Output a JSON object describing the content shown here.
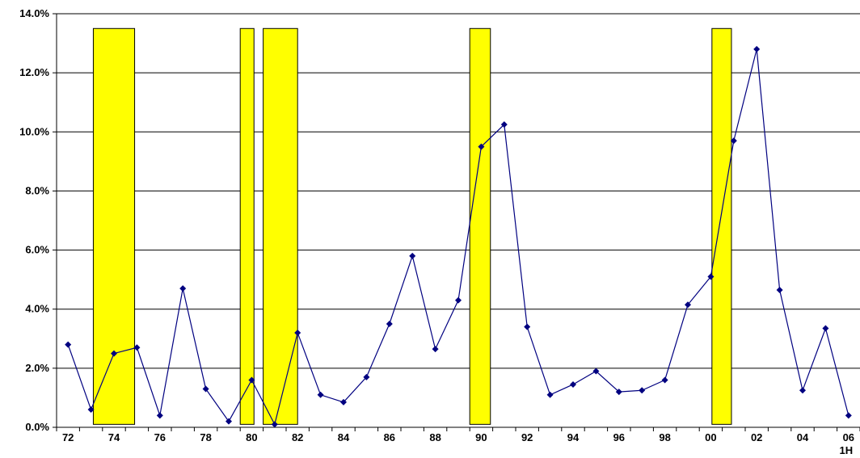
{
  "chart_data": {
    "type": "line",
    "title": "",
    "xlabel": "",
    "ylabel": "",
    "ylim": [
      0,
      14
    ],
    "y_ticks": [
      {
        "value": 0,
        "label": "0.0%"
      },
      {
        "value": 2,
        "label": "2.0%"
      },
      {
        "value": 4,
        "label": "4.0%"
      },
      {
        "value": 6,
        "label": "6.0%"
      },
      {
        "value": 8,
        "label": "8.0%"
      },
      {
        "value": 10,
        "label": "10.0%"
      },
      {
        "value": 12,
        "label": "12.0%"
      },
      {
        "value": 14,
        "label": "14.0%"
      }
    ],
    "categories": [
      "72",
      "73",
      "74",
      "75",
      "76",
      "77",
      "78",
      "79",
      "80",
      "81",
      "82",
      "83",
      "84",
      "85",
      "86",
      "87",
      "88",
      "89",
      "90",
      "91",
      "92",
      "93",
      "94",
      "95",
      "96",
      "97",
      "98",
      "99",
      "00",
      "01",
      "02",
      "03",
      "04",
      "05",
      "06 1H"
    ],
    "x_tick_labels": [
      {
        "index": 0,
        "label": "72"
      },
      {
        "index": 2,
        "label": "74"
      },
      {
        "index": 4,
        "label": "76"
      },
      {
        "index": 6,
        "label": "78"
      },
      {
        "index": 8,
        "label": "80"
      },
      {
        "index": 10,
        "label": "82"
      },
      {
        "index": 12,
        "label": "84"
      },
      {
        "index": 14,
        "label": "86"
      },
      {
        "index": 16,
        "label": "88"
      },
      {
        "index": 18,
        "label": "90"
      },
      {
        "index": 20,
        "label": "92"
      },
      {
        "index": 22,
        "label": "94"
      },
      {
        "index": 24,
        "label": "96"
      },
      {
        "index": 26,
        "label": "98"
      },
      {
        "index": 28,
        "label": "00"
      },
      {
        "index": 30,
        "label": "02"
      },
      {
        "index": 32,
        "label": "04"
      },
      {
        "index": 34,
        "label": "06",
        "sublabel": "1H"
      }
    ],
    "series": [
      {
        "values": [
          2.8,
          0.6,
          2.5,
          2.7,
          0.4,
          4.7,
          1.3,
          0.2,
          1.6,
          0.1,
          3.2,
          1.1,
          0.85,
          1.7,
          3.5,
          5.8,
          2.65,
          4.3,
          9.5,
          10.25,
          3.4,
          1.1,
          1.45,
          1.9,
          1.2,
          1.25,
          1.6,
          4.15,
          5.1,
          9.7,
          12.8,
          4.65,
          1.25,
          3.35,
          0.4
        ],
        "color": "#000080"
      }
    ],
    "shaded_periods": [
      {
        "from": 73.1,
        "to": 74.9,
        "top": 13.5
      },
      {
        "from": 79.5,
        "to": 80.1,
        "top": 13.5
      },
      {
        "from": 80.5,
        "to": 82.0,
        "top": 13.5
      },
      {
        "from": 89.5,
        "to": 90.4,
        "top": 13.5
      },
      {
        "from": 100.05,
        "to": 100.9,
        "top": 13.5
      }
    ],
    "colors": {
      "shade_fill": "#ffff00",
      "shade_stroke": "#000000",
      "line": "#000080",
      "grid": "#000000"
    },
    "grid": true,
    "legend": "none"
  }
}
